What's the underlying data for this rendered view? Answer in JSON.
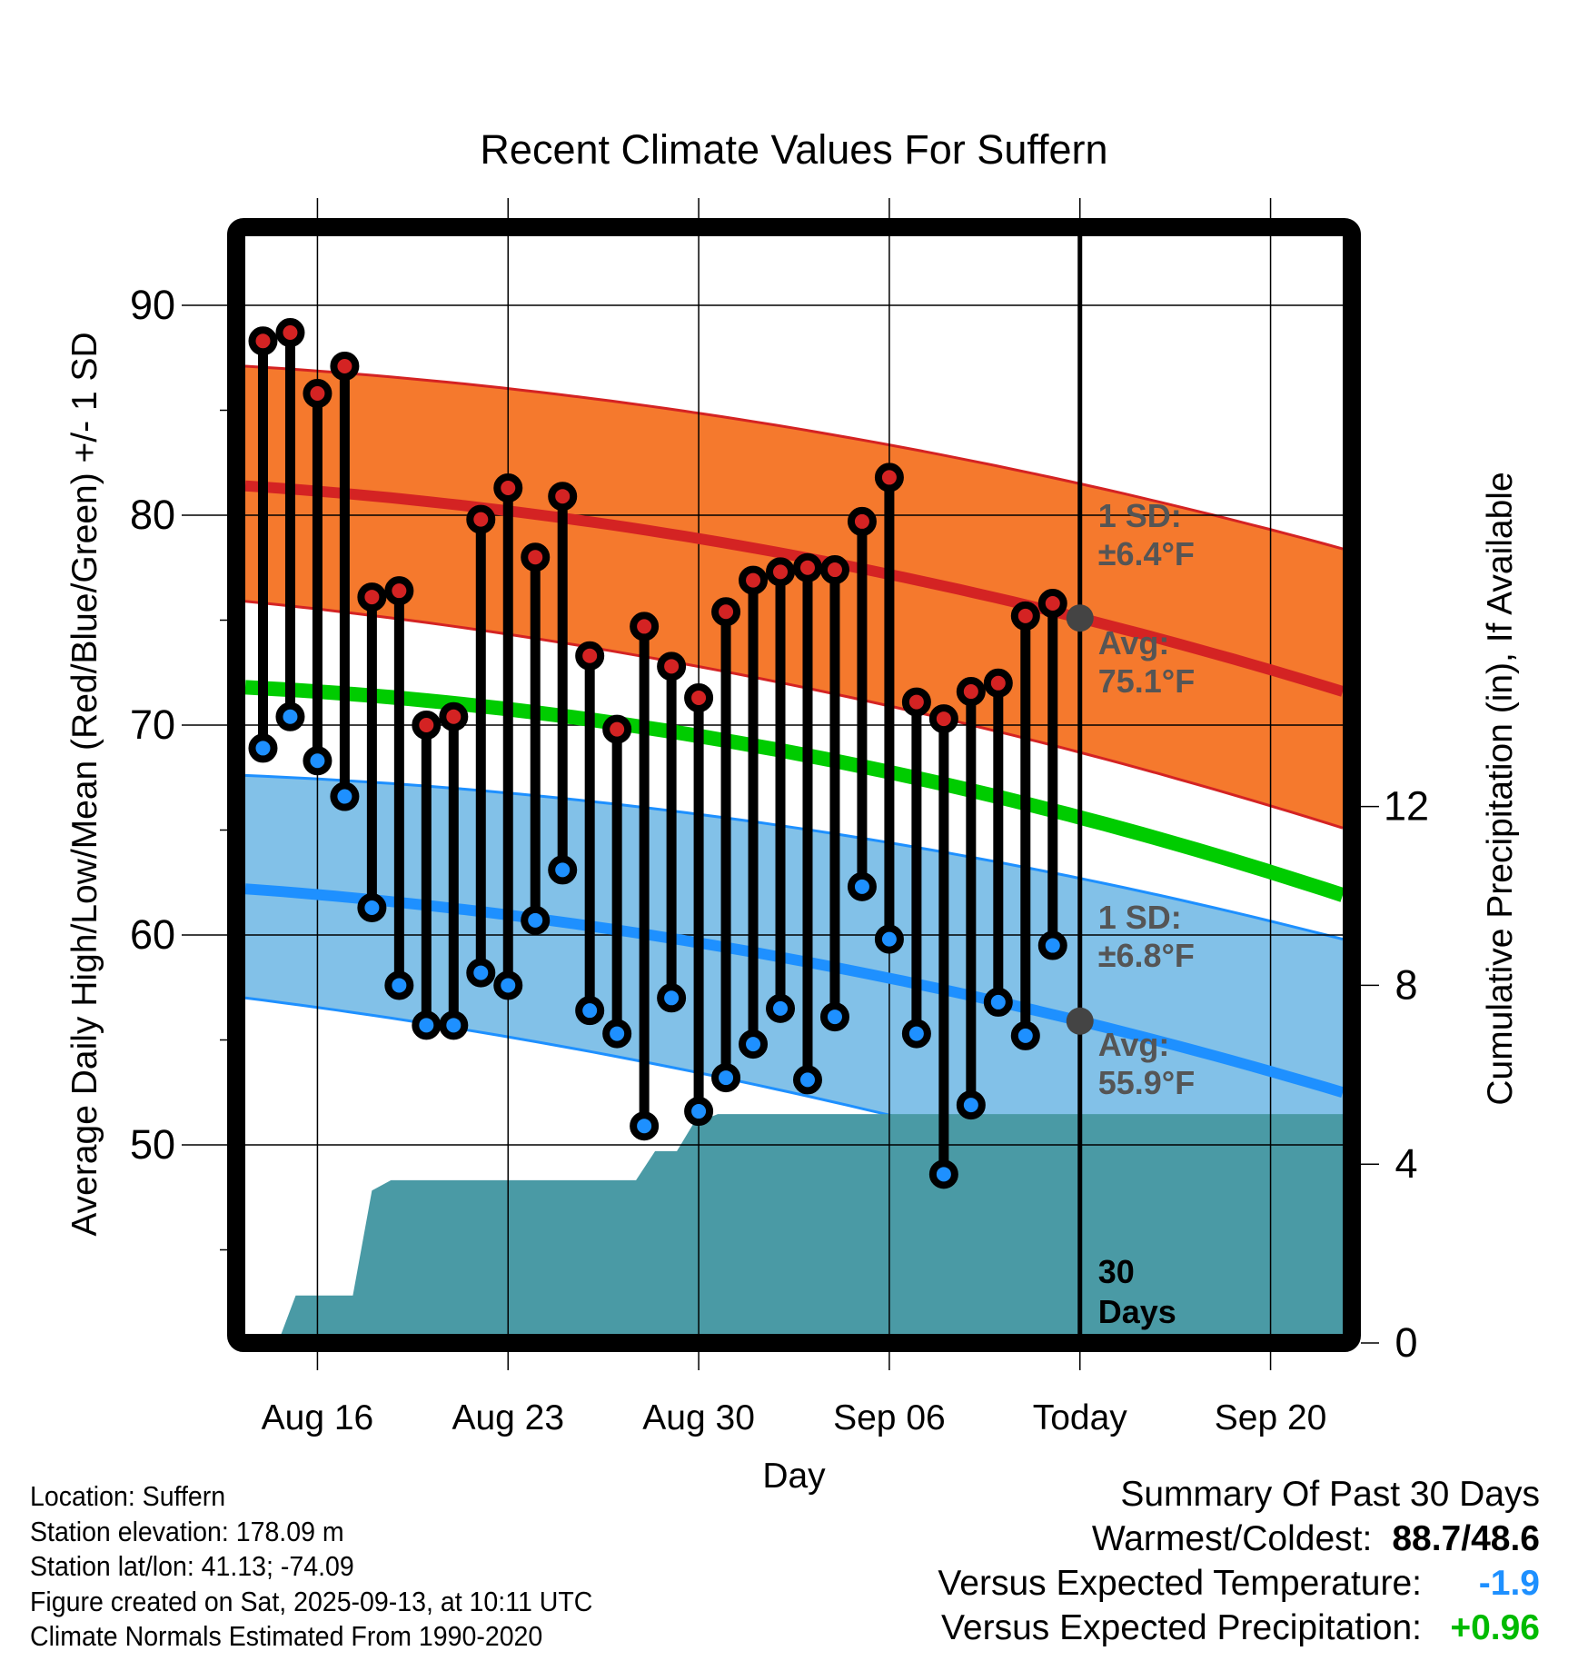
{
  "chart_data": {
    "type": "line",
    "title": "Recent Climate Values For Suffern",
    "xlabel": "Day",
    "ylabel": "Average Daily High/Low/Mean (Red/Blue/Green) +/- 1 SD",
    "y2label": "Cumulative Precipitation (in), If Available",
    "ylim": [
      41,
      93.3
    ],
    "y2lim": [
      -0.2,
      10.6
    ],
    "yticks": [
      "90",
      "80",
      "70",
      "60",
      "50"
    ],
    "yticks_values": [
      90,
      80,
      70,
      60,
      50
    ],
    "y2ticks": [
      "12",
      "8",
      "4",
      "0"
    ],
    "y2ticks_values": [
      12,
      8,
      4,
      0
    ],
    "xlim_day_offset": [
      -2.65,
      37.65
    ],
    "xticks": [
      {
        "label": "Aug 16",
        "offset": 0
      },
      {
        "label": "Aug 23",
        "offset": 7
      },
      {
        "label": "Aug 30",
        "offset": 14
      },
      {
        "label": "Sep 06",
        "offset": 21
      },
      {
        "label": "Today",
        "offset": 28
      },
      {
        "label": "Sep 20",
        "offset": 35
      }
    ],
    "grid": true,
    "days_offset_start": -2,
    "dates": [
      "Aug 14",
      "Aug 15",
      "Aug 16",
      "Aug 17",
      "Aug 18",
      "Aug 19",
      "Aug 20",
      "Aug 21",
      "Aug 22",
      "Aug 23",
      "Aug 24",
      "Aug 25",
      "Aug 26",
      "Aug 27",
      "Aug 28",
      "Aug 29",
      "Aug 30",
      "Aug 31",
      "Sep 01",
      "Sep 02",
      "Sep 03",
      "Sep 04",
      "Sep 05",
      "Sep 06",
      "Sep 07",
      "Sep 08",
      "Sep 09",
      "Sep 10",
      "Sep 11",
      "Sep 12"
    ],
    "series": [
      {
        "name": "Daily High",
        "color": "#d42323",
        "values": [
          88.3,
          88.7,
          85.8,
          87.1,
          76.1,
          76.4,
          70.0,
          70.4,
          79.8,
          81.3,
          78.0,
          80.9,
          73.3,
          69.8,
          74.7,
          72.8,
          71.3,
          75.4,
          76.9,
          77.3,
          77.5,
          77.4,
          79.7,
          81.8,
          71.1,
          70.3,
          71.6,
          72.0,
          75.2,
          75.8
        ]
      },
      {
        "name": "Daily Low",
        "color": "#1e90ff",
        "values": [
          68.9,
          70.4,
          68.3,
          66.6,
          61.3,
          57.6,
          55.7,
          55.7,
          58.2,
          57.6,
          60.7,
          63.1,
          56.4,
          55.3,
          50.9,
          57.0,
          51.6,
          53.2,
          54.8,
          56.5,
          53.1,
          56.1,
          62.3,
          59.8,
          55.3,
          48.6,
          51.9,
          56.8,
          55.2,
          59.5
        ]
      }
    ],
    "normals": {
      "offsets": [
        -2.65,
        28,
        37.65
      ],
      "high_mean": [
        81.4,
        75.1,
        71.6
      ],
      "high_sd": 6.4,
      "high_upper": [
        87.1,
        81.5,
        78.4
      ],
      "high_lower": [
        75.9,
        68.7,
        65.1
      ],
      "mean": [
        71.8,
        65.6,
        61.9
      ],
      "low_mean": [
        62.2,
        55.9,
        52.5
      ],
      "low_sd": 6.8,
      "low_upper": [
        67.6,
        62.7,
        59.8
      ],
      "low_lower": [
        57.0,
        49.1,
        45.4
      ]
    },
    "precipitation": {
      "color": "#4a9aa5",
      "points": [
        {
          "offset": -1.33,
          "value": 0.0
        },
        {
          "offset": -0.8,
          "value": 1.06
        },
        {
          "offset": 1.3,
          "value": 1.06
        },
        {
          "offset": 2.0,
          "value": 3.41
        },
        {
          "offset": 2.7,
          "value": 3.64
        },
        {
          "offset": 11.7,
          "value": 3.64
        },
        {
          "offset": 12.4,
          "value": 4.29
        },
        {
          "offset": 13.2,
          "value": 4.29
        },
        {
          "offset": 13.8,
          "value": 4.9
        },
        {
          "offset": 14.7,
          "value": 5.12
        },
        {
          "offset": 37.65,
          "value": 5.12
        }
      ]
    },
    "today_offset": 28,
    "annotations": {
      "high_sd_line1": "1 SD:",
      "high_sd_line2": "±6.4°F",
      "high_avg_line1": "Avg:",
      "high_avg_line2": "75.1°F",
      "low_sd_line1": "1 SD:",
      "low_sd_line2": "±6.8°F",
      "low_avg_line1": "Avg:",
      "low_avg_line2": "55.9°F",
      "days_line1": "30",
      "days_line2": "Days"
    },
    "colors": {
      "high_band": "#f5792d",
      "high_line": "#d42323",
      "low_band": "#82c1e8",
      "low_line": "#1e90ff",
      "mean_line": "#00cc00",
      "annotation_text": "#555555",
      "today_marker": "#444444"
    }
  },
  "info": {
    "location": "Location: Suffern",
    "elevation": "Station elevation: 178.09 m",
    "latlon": "Station lat/lon: 41.13; -74.09",
    "created": "Figure created on Sat, 2025-09-13, at 10:11 UTC",
    "normals": "Climate Normals Estimated From 1990-2020"
  },
  "summary": {
    "title": "Summary Of Past 30 Days",
    "warmest_label": "Warmest/Coldest:",
    "warmest_value": "88.7/48.6",
    "temp_label": "Versus Expected Temperature:",
    "temp_value": "-1.9",
    "temp_color": "#1e90ff",
    "precip_label": "Versus Expected Precipitation:",
    "precip_value": "+0.96",
    "precip_color": "#00bb00"
  }
}
